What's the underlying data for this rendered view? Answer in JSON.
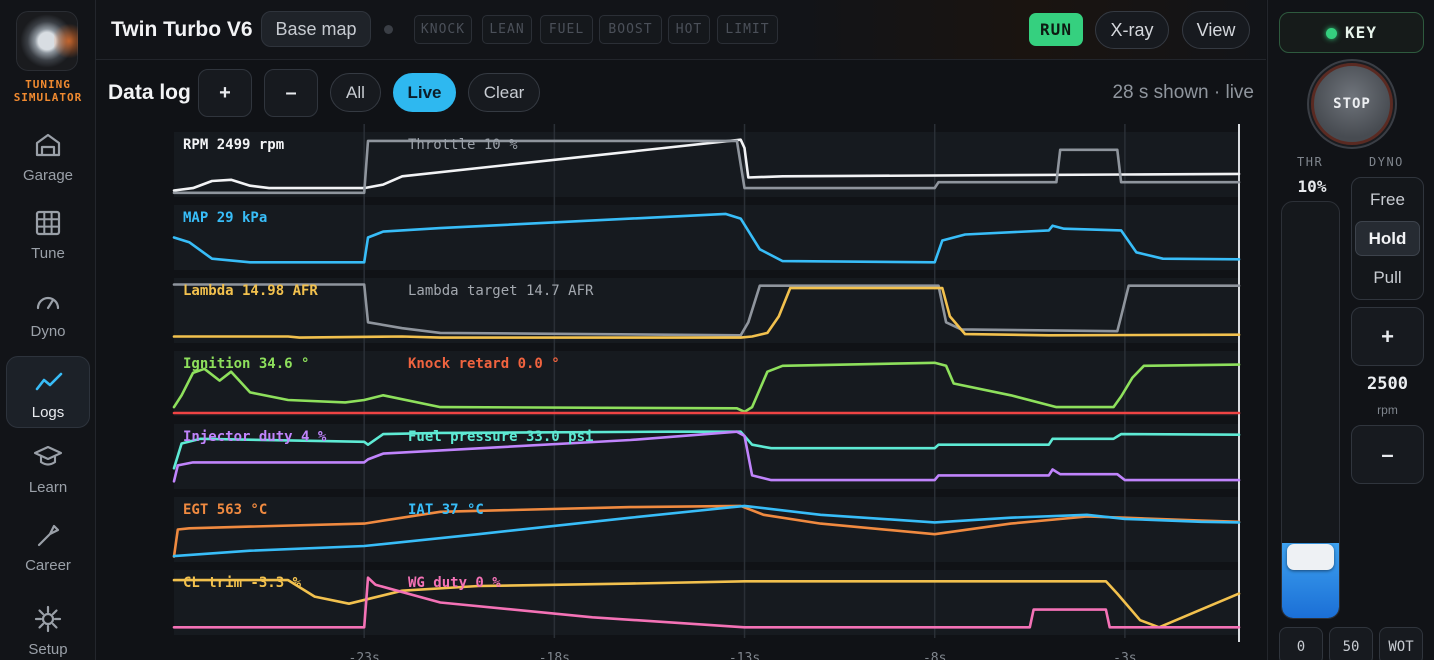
{
  "sidebar": {
    "logo_text_1": "TUNING",
    "logo_text_2": "SIMULATOR",
    "items": [
      {
        "label": "Garage",
        "icon": "garage-icon"
      },
      {
        "label": "Tune",
        "icon": "grid-icon"
      },
      {
        "label": "Dyno",
        "icon": "gauge-icon"
      },
      {
        "label": "Logs",
        "icon": "chart-line-icon",
        "active": true
      },
      {
        "label": "Learn",
        "icon": "graduation-cap-icon"
      },
      {
        "label": "Career",
        "icon": "wrench-icon"
      },
      {
        "label": "Setup",
        "icon": "gear-icon"
      }
    ]
  },
  "header": {
    "title": "Twin Turbo V6",
    "map_button": "Base map",
    "flags": [
      "KNOCK",
      "LEAN",
      "FUEL",
      "BOOST",
      "HOT",
      "LIMIT"
    ],
    "run": "RUN",
    "xray": "X-ray",
    "view": "View"
  },
  "toolbar": {
    "title": "Data log",
    "zoom_in": "+",
    "zoom_out": "–",
    "filters": [
      "All",
      "Live",
      "Clear"
    ],
    "active_filter": "Live",
    "shown": "28 s shown · live"
  },
  "chart_data": {
    "type": "line",
    "x_unit": "s",
    "x_ticks": [
      "-23s",
      "-18s",
      "-13s",
      "-8s",
      "-3s"
    ],
    "x_range": [
      -28,
      0
    ],
    "rows": [
      {
        "label": "RPM 2499 rpm",
        "color": "#f2f3f5",
        "series": [
          {
            "name": "RPM",
            "color": "#f2f3f5",
            "ylim": [
              0,
              100
            ],
            "x": [
              -28,
              -27.5,
              -27,
              -26.5,
              -26,
              -25.5,
              -23,
              -22.5,
              -22,
              -13.1,
              -13,
              -12.9,
              -12,
              -3,
              0
            ],
            "y": [
              6,
              10,
              22,
              24,
              14,
              10,
              10,
              16,
              30,
              92,
              78,
              28,
              30,
              33,
              34
            ]
          },
          {
            "name": "Throttle",
            "color": "#8f959d",
            "ylim": [
              0,
              100
            ],
            "x": [
              -28,
              -23,
              -22.9,
              -13.2,
              -13,
              -8,
              -7.9,
              -4.8,
              -4.7,
              -3.2,
              -3.1,
              0
            ],
            "y": [
              2,
              2,
              90,
              90,
              10,
              10,
              20,
              20,
              75,
              75,
              20,
              20
            ]
          }
        ]
      },
      {
        "label": "MAP 29 kPa",
        "color": "#38bdf8",
        "series": [
          {
            "name": "MAP",
            "color": "#38bdf8",
            "ylim": [
              0,
              100
            ],
            "x": [
              -28,
              -27.6,
              -27,
              -26,
              -23,
              -22.9,
              -22.5,
              -21,
              -13.5,
              -13.1,
              -12.6,
              -12,
              -8,
              -7.8,
              -7.2,
              -5,
              -4.9,
              -4.6,
              -3.1,
              -2.7,
              -2,
              0
            ],
            "y": [
              50,
              42,
              14,
              8,
              8,
              50,
              60,
              66,
              90,
              82,
              30,
              10,
              8,
              45,
              55,
              62,
              70,
              65,
              62,
              25,
              14,
              13
            ]
          }
        ]
      },
      {
        "label": "Lambda 14.98 AFR",
        "color": "#f2c14e",
        "series": [
          {
            "name": "Lambda target",
            "color": "#8f959d",
            "ylim": [
              0,
              100
            ],
            "x": [
              -28,
              -23,
              -22.9,
              -22,
              -21,
              -13.1,
              -12.9,
              -12.6,
              -7.9,
              -7.7,
              -7.3,
              -3.2,
              -3.1,
              -2.9,
              0
            ],
            "y": [
              94,
              94,
              30,
              20,
              12,
              8,
              30,
              92,
              92,
              30,
              18,
              15,
              40,
              92,
              92
            ]
          },
          {
            "name": "Lambda",
            "color": "#f2c14e",
            "ylim": [
              0,
              100
            ],
            "x": [
              -28,
              -25,
              -24.7,
              -22,
              -21,
              -13.1,
              -12.8,
              -12.4,
              -12.1,
              -11.8,
              -7.8,
              -7.6,
              -7.2,
              -5,
              0
            ],
            "y": [
              6,
              6,
              4,
              6,
              4,
              4,
              6,
              12,
              40,
              88,
              88,
              40,
              10,
              8,
              9
            ]
          }
        ]
      },
      {
        "label": "Ignition 34.6 °",
        "color": "#8ee05c",
        "series": [
          {
            "name": "Ignition",
            "color": "#8ee05c",
            "ylim": [
              0,
              100
            ],
            "x": [
              -28,
              -27.8,
              -27.5,
              -27.2,
              -26.8,
              -26.5,
              -26,
              -25,
              -23.5,
              -23,
              -22.5,
              -21,
              -13.2,
              -13,
              -12.8,
              -12.4,
              -12,
              -8,
              -7.7,
              -7.5,
              -6,
              -4.8,
              -3.3,
              -3.1,
              -2.8,
              -2.5,
              0
            ],
            "y": [
              10,
              30,
              68,
              75,
              55,
              70,
              35,
              22,
              18,
              22,
              30,
              10,
              8,
              2,
              10,
              70,
              80,
              85,
              80,
              50,
              30,
              10,
              10,
              28,
              60,
              80,
              82
            ]
          },
          {
            "name": "Knock retard",
            "color": "#ef4444",
            "ylim": [
              0,
              100
            ],
            "x": [
              -28,
              0
            ],
            "y": [
              0,
              0
            ]
          }
        ]
      },
      {
        "label": "Injector duty 4 %",
        "color": "#c084fc",
        "series": [
          {
            "name": "Fuel pressure",
            "color": "#5eead4",
            "ylim": [
              0,
              100
            ],
            "x": [
              -28,
              -27.8,
              -27.3,
              -23,
              -22.9,
              -22.5,
              -21,
              -15,
              -13.1,
              -12.8,
              -12.3,
              -8,
              -7.9,
              -5,
              -4.9,
              -3.3,
              -3.1,
              0
            ],
            "y": [
              30,
              72,
              80,
              75,
              70,
              88,
              90,
              92,
              92,
              70,
              64,
              64,
              70,
              70,
              80,
              80,
              88,
              87
            ]
          },
          {
            "name": "Injector duty",
            "color": "#c084fc",
            "ylim": [
              0,
              100
            ],
            "x": [
              -28,
              -27.9,
              -27.5,
              -23,
              -22.9,
              -22.5,
              -16,
              -13.2,
              -13,
              -12.8,
              -12.3,
              -8,
              -7.9,
              -5,
              -4.9,
              -4.7,
              -3.2,
              -3,
              0
            ],
            "y": [
              8,
              35,
              40,
              40,
              45,
              55,
              78,
              92,
              85,
              18,
              10,
              10,
              18,
              18,
              28,
              20,
              20,
              10,
              10
            ]
          }
        ]
      },
      {
        "label": "EGT 563 °C",
        "color": "#f08a40",
        "series": [
          {
            "name": "EGT",
            "color": "#f08a40",
            "ylim": [
              0,
              100
            ],
            "x": [
              -28,
              -27.9,
              -27.6,
              -26,
              -23,
              -21,
              -16,
              -13.1,
              -12.5,
              -11,
              -8,
              -6,
              -4,
              -3,
              -1,
              0
            ],
            "y": [
              4,
              50,
              52,
              55,
              60,
              80,
              88,
              90,
              75,
              60,
              42,
              60,
              72,
              70,
              65,
              63
            ]
          },
          {
            "name": "IAT",
            "color": "#38bdf8",
            "ylim": [
              0,
              100
            ],
            "x": [
              -28,
              -26,
              -23,
              -20,
              -16,
              -13,
              -11,
              -8,
              -6,
              -4,
              -3,
              -1,
              0
            ],
            "y": [
              5,
              14,
              22,
              42,
              70,
              90,
              75,
              62,
              70,
              75,
              68,
              63,
              62
            ]
          }
        ]
      },
      {
        "label": "CL trim -3.3 %",
        "color": "#f2c14e",
        "series": [
          {
            "name": "CL trim",
            "color": "#f2c14e",
            "ylim": [
              0,
              100
            ],
            "x": [
              -28,
              -25,
              -24.3,
              -23.4,
              -22,
              -20,
              -16,
              -13,
              -3.5,
              -3.2,
              -2.6,
              -2.1,
              -1,
              0
            ],
            "y": [
              88,
              88,
              60,
              48,
              70,
              78,
              82,
              86,
              86,
              65,
              20,
              8,
              38,
              65
            ]
          },
          {
            "name": "WG duty",
            "color": "#f472b6",
            "ylim": [
              0,
              100
            ],
            "x": [
              -28,
              -23,
              -22.9,
              -22.7,
              -21,
              -17,
              -13,
              -5.5,
              -5.4,
              -3.5,
              -3.4,
              0
            ],
            "y": [
              8,
              8,
              92,
              80,
              50,
              25,
              8,
              8,
              38,
              38,
              8,
              8
            ]
          }
        ]
      }
    ],
    "secondary_labels": [
      "Throttle 10 %",
      "",
      "Lambda target 14.7 AFR",
      "Knock retard 0.0 °",
      "Fuel pressure 33.0 psi",
      "IAT 37 °C",
      "WG duty 0 %"
    ],
    "secondary_colors": [
      "#9aa0a8",
      "",
      "#a3a8af",
      "#f0633f",
      "#5eead4",
      "#38bdf8",
      "#f472b6"
    ]
  },
  "right_panel": {
    "key": "KEY",
    "stop": "STOP",
    "thr_label": "THR",
    "dyno_label": "DYNO",
    "thr_value": "10%",
    "throttle_fraction": 0.1,
    "dyno_options": [
      "Free",
      "Hold",
      "Pull"
    ],
    "dyno_selected": "Hold",
    "plus": "+",
    "minus": "–",
    "rpm_value": "2500",
    "rpm_unit": "rpm",
    "quick": [
      "0",
      "50",
      "WOT"
    ]
  }
}
